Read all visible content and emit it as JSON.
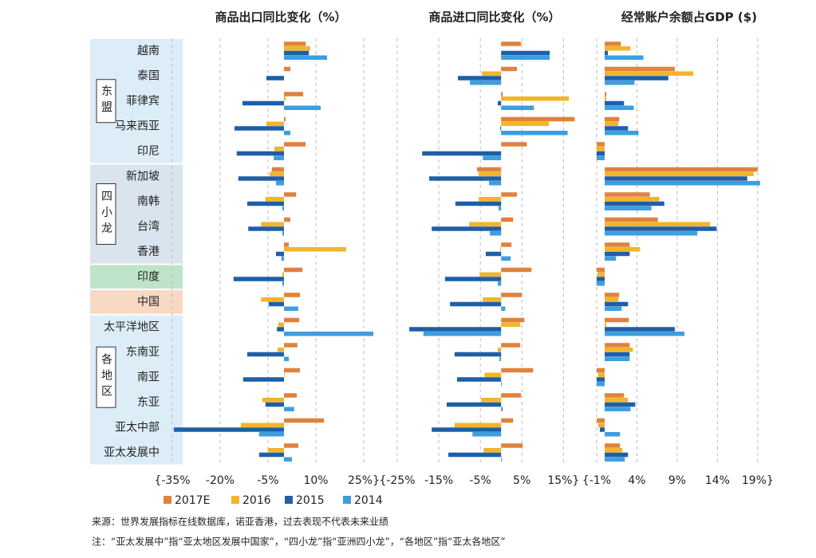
{
  "chart_data": [
    {
      "type": "bar",
      "orientation": "horizontal",
      "title": "商品出口同比变化（%）",
      "categories": [
        "越南",
        "泰国",
        "菲律宾",
        "马来西亚",
        "印尼",
        "新加坡",
        "南韩",
        "台湾",
        "香港",
        "印度",
        "中国",
        "太平洋地区",
        "东南亚",
        "南亚",
        "东亚",
        "亚太中部",
        "亚太发展中"
      ],
      "groups": [
        "东盟",
        "四小龙",
        "各地区"
      ],
      "xlim": [
        -35,
        28
      ],
      "xticks": [
        {
          "value": -35,
          "label": "{-35%"
        },
        {
          "value": -20,
          "label": "-20%"
        },
        {
          "value": -5,
          "label": "-5%"
        },
        {
          "value": 10,
          "label": "10%"
        },
        {
          "value": 25,
          "label": "25%}"
        }
      ],
      "grid": true,
      "series": [
        {
          "name": "2017E",
          "color": "#e0823d",
          "values": [
            6.8,
            2,
            6,
            0.5,
            6.8,
            -3.8,
            3.8,
            2,
            1.5,
            5.8,
            5,
            4.8,
            4.2,
            5,
            4,
            12.5,
            4.5
          ]
        },
        {
          "name": "2016",
          "color": "#f2b52a",
          "values": [
            8.2,
            0,
            0.5,
            -5.5,
            -3,
            -4.5,
            -5.8,
            -7.2,
            19.5,
            -0.5,
            -7.2,
            -1.8,
            -2,
            0.2,
            -6.8,
            -13.5,
            -5
          ]
        },
        {
          "name": "2015",
          "color": "#1f5ea8",
          "values": [
            7.8,
            -5.5,
            -13,
            -15.5,
            -14.8,
            -14.3,
            -11.5,
            -11.2,
            -2.5,
            -15.8,
            -4.8,
            -2.2,
            -11.5,
            -12.8,
            -5.8,
            -34.5,
            -7.8
          ]
        },
        {
          "name": "2014",
          "color": "#3d9ee0",
          "values": [
            13.5,
            0,
            11.5,
            2,
            -3.2,
            -2.5,
            -0.5,
            -0.5,
            -0.8,
            -0.5,
            4.5,
            28,
            1.5,
            0,
            3.2,
            -7.8,
            2.5
          ]
        }
      ]
    },
    {
      "type": "bar",
      "orientation": "horizontal",
      "title": "商品进口同比变化（%）",
      "xlim": [
        -25,
        18
      ],
      "xticks": [
        {
          "value": -25,
          "label": "{-25%"
        },
        {
          "value": -15,
          "label": "-15%"
        },
        {
          "value": -5,
          "label": "-5%"
        },
        {
          "value": 5,
          "label": "5%"
        },
        {
          "value": 15,
          "label": "15%}"
        }
      ],
      "grid": true,
      "series": [
        {
          "color": "#e0823d",
          "values": [
            4.8,
            3.8,
            0.4,
            17.7,
            6.2,
            -5.8,
            3.8,
            2.9,
            2.5,
            7.3,
            5,
            5.6,
            4.6,
            7.7,
            4.8,
            2.9,
            5.2
          ]
        },
        {
          "color": "#f2b52a",
          "values": [
            0,
            -4.6,
            16.3,
            11.5,
            0,
            -5.4,
            -5.4,
            -7.7,
            -0.2,
            -5.2,
            -4.4,
            4.6,
            -0.8,
            -4,
            -4.8,
            -11.2,
            -4.2
          ]
        },
        {
          "color": "#1f5ea8",
          "values": [
            11.7,
            -10.4,
            -0.8,
            -0.2,
            -19,
            -17.3,
            -11,
            -16.7,
            -3.7,
            -13.5,
            -12.3,
            -22.1,
            -11.2,
            -10.6,
            -13.1,
            -16.7,
            -12.7
          ]
        },
        {
          "color": "#3d9ee0",
          "values": [
            11.7,
            -7.5,
            7.9,
            16,
            -4.4,
            -2.9,
            -0.6,
            -2.7,
            2.3,
            -0.8,
            1,
            -18.7,
            -0.4,
            0.2,
            0.4,
            -6.9,
            0.2
          ]
        }
      ]
    },
    {
      "type": "bar",
      "orientation": "horizontal",
      "title": "经常账户余额占GDP ($)",
      "xlim": [
        -1,
        20
      ],
      "xticks": [
        {
          "value": -1,
          "label": "{-1%"
        },
        {
          "value": 4,
          "label": "4%"
        },
        {
          "value": 9,
          "label": "9%"
        },
        {
          "value": 14,
          "label": "14%"
        },
        {
          "value": 19,
          "label": "19%}"
        }
      ],
      "grid": true,
      "series": [
        {
          "color": "#e0823d",
          "values": [
            2,
            8.7,
            0.2,
            1.8,
            -1,
            19,
            5.6,
            6.6,
            3.1,
            -1,
            1.8,
            3,
            3.1,
            -1,
            2.4,
            -1,
            1.9
          ]
        },
        {
          "color": "#f2b52a",
          "values": [
            3.2,
            11,
            0.2,
            1.7,
            -1,
            18.5,
            6.8,
            13.1,
            4.4,
            -0.9,
            1.7,
            0.2,
            3.5,
            -0.8,
            2.9,
            -0.8,
            2.2
          ]
        },
        {
          "color": "#1f5ea8",
          "values": [
            0.4,
            7.9,
            2.4,
            2.9,
            -1,
            17.7,
            7.4,
            13.9,
            3.1,
            -1,
            2.9,
            8.7,
            3.1,
            -1,
            3.8,
            -0.6,
            2.9
          ]
        },
        {
          "color": "#3d9ee0",
          "values": [
            4.8,
            3.7,
            3.6,
            4.2,
            -1,
            19.3,
            5.8,
            11.5,
            1.4,
            -1,
            2.1,
            9.9,
            3.1,
            -1,
            3.2,
            1.9,
            2.5
          ]
        }
      ]
    }
  ],
  "notes": [
    "来源：世界发展指标在线数据库，诺亚香港，过去表现不代表未来业绩",
    "注：“亚太发展中”指“亚太地区发展中国家”，“四小龙”指“亚洲四小龙”，“各地区”指“亚太各地区”"
  ]
}
